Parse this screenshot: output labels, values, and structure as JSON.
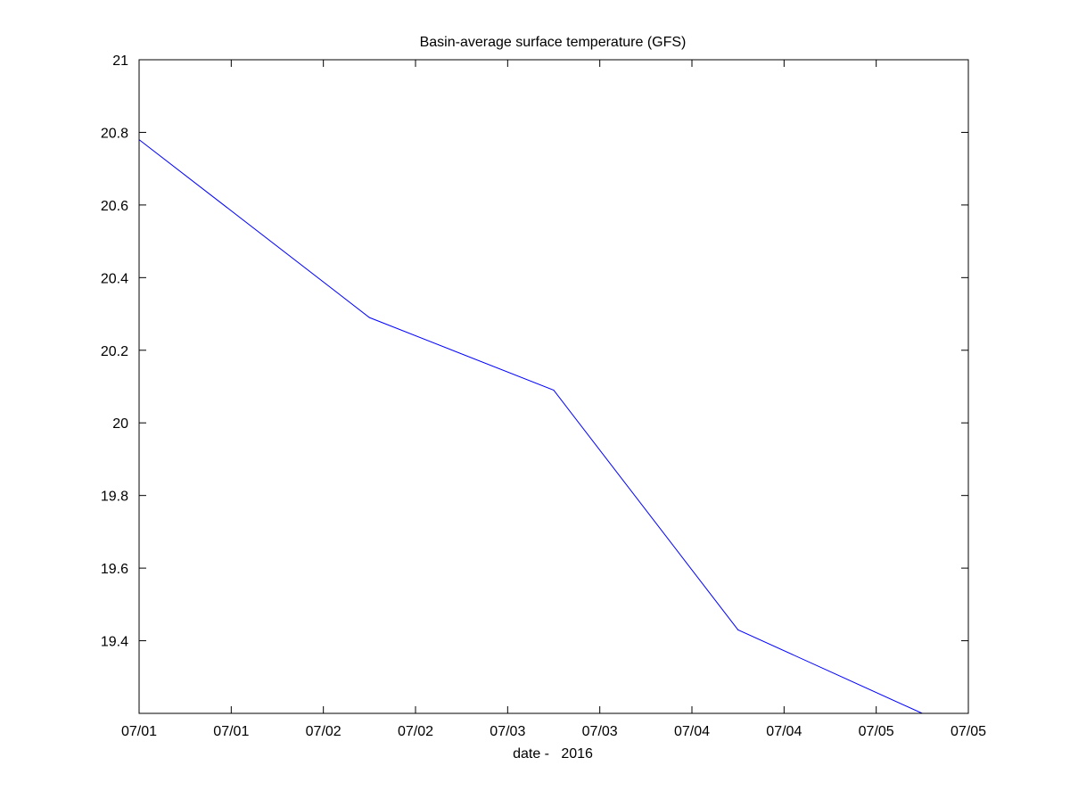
{
  "chart_data": {
    "type": "line",
    "title": "Basin-average surface temperature (GFS)",
    "xlabel": "date -   2016",
    "ylabel": "",
    "x_tick_labels": [
      "07/01",
      "07/01",
      "07/02",
      "07/02",
      "07/03",
      "07/03",
      "07/04",
      "07/04",
      "07/05",
      "07/05"
    ],
    "y_tick_labels": [
      "19.4",
      "19.6",
      "19.8",
      "20",
      "20.2",
      "20.4",
      "20.6",
      "20.8",
      "21"
    ],
    "y_ticks": [
      19.4,
      19.6,
      19.8,
      20.0,
      20.2,
      20.4,
      20.6,
      20.8,
      21.0
    ],
    "xlim": [
      "2016-07-01 00:00",
      "2016-07-05 12:00"
    ],
    "ylim": [
      19.2,
      21.0
    ],
    "grid": false,
    "series": [
      {
        "color": "#0000ff",
        "x": [
          "2016-07-01 00:00",
          "2016-07-02 06:00",
          "2016-07-03 06:00",
          "2016-07-04 06:00",
          "2016-07-05 06:00"
        ],
        "values": [
          20.78,
          20.29,
          20.09,
          19.43,
          19.2
        ]
      }
    ]
  }
}
